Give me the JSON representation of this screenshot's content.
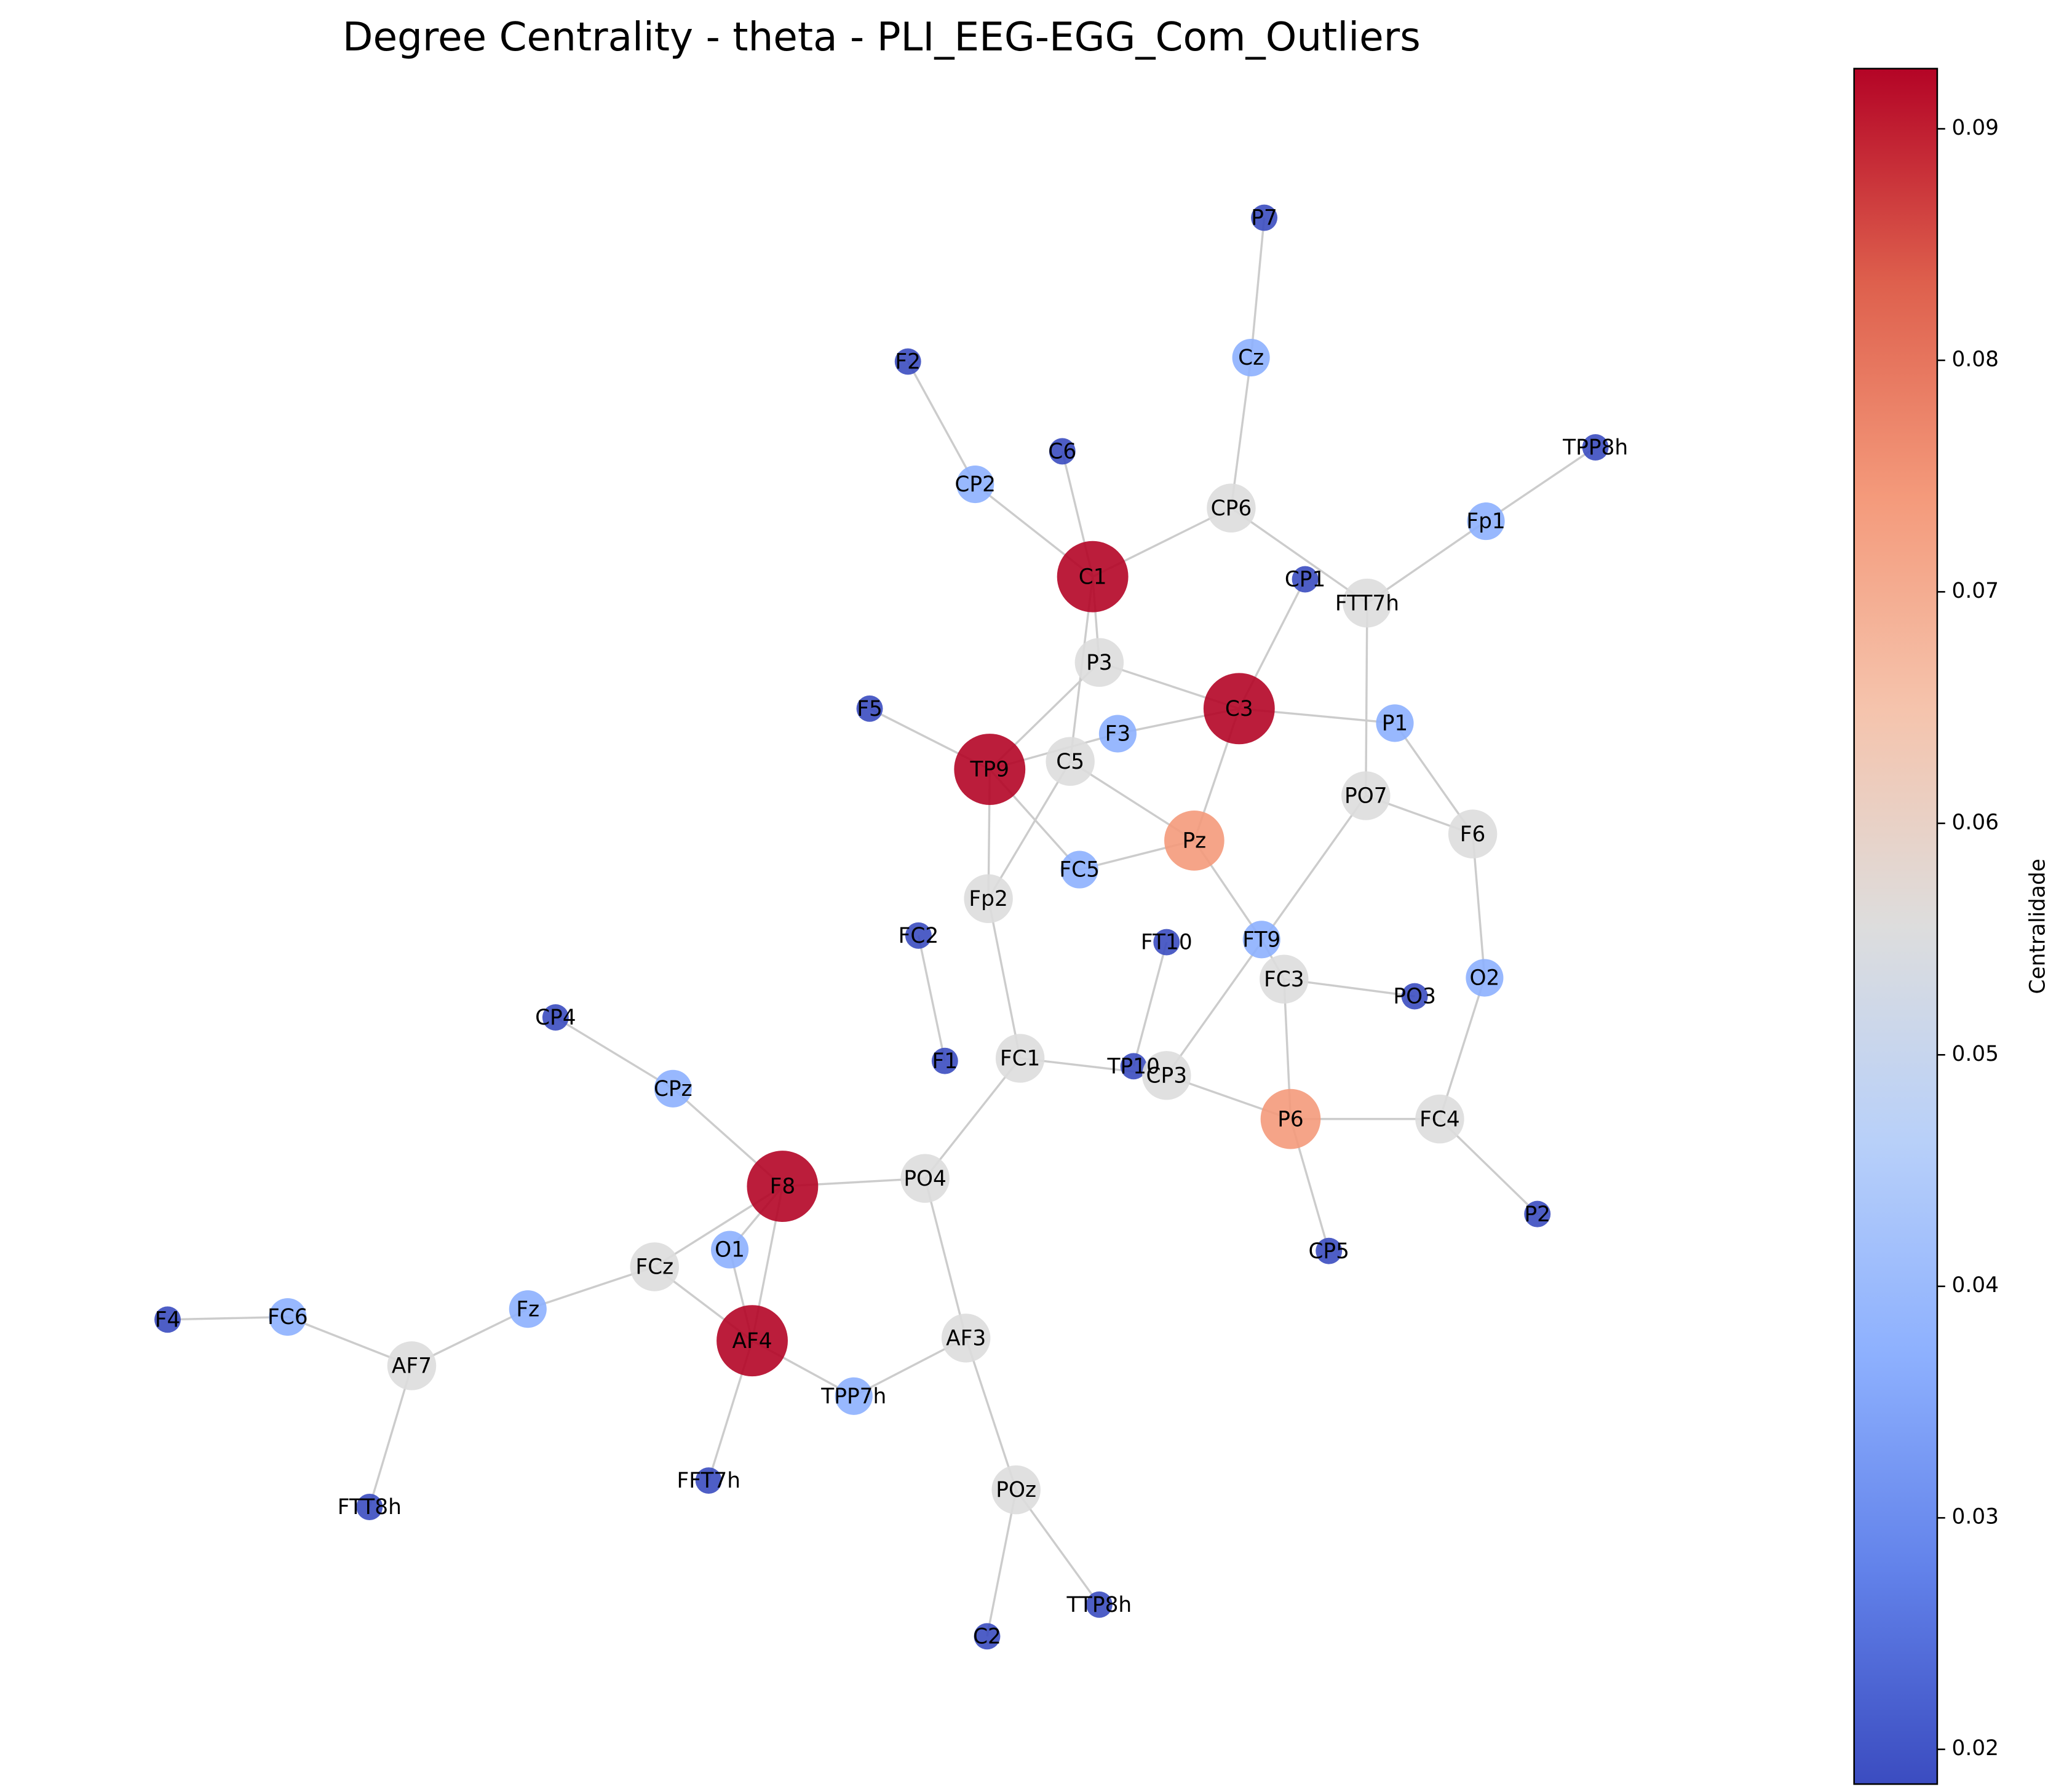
{
  "chart_data": {
    "type": "network",
    "title": "Degree Centrality - theta - PLI_EEG-EGG_Com_Outliers",
    "colorbar_label": "Centralidade",
    "colormap": "coolwarm",
    "clim": [
      0.0185,
      0.0926
    ],
    "cticks": [
      0.02,
      0.03,
      0.04,
      0.05,
      0.06,
      0.07,
      0.08,
      0.09
    ],
    "nodes": [
      {
        "name": "P7",
        "value": 0.0185
      },
      {
        "name": "Cz",
        "value": 0.037
      },
      {
        "name": "CP6",
        "value": 0.0556
      },
      {
        "name": "F2",
        "value": 0.0185
      },
      {
        "name": "CP2",
        "value": 0.037
      },
      {
        "name": "C6",
        "value": 0.0185
      },
      {
        "name": "C1",
        "value": 0.0926
      },
      {
        "name": "TPP8h",
        "value": 0.0185
      },
      {
        "name": "Fp1",
        "value": 0.037
      },
      {
        "name": "CP1",
        "value": 0.0185
      },
      {
        "name": "FTT7h",
        "value": 0.0556
      },
      {
        "name": "P3",
        "value": 0.0556
      },
      {
        "name": "C3",
        "value": 0.0926
      },
      {
        "name": "F5",
        "value": 0.0185
      },
      {
        "name": "TP9",
        "value": 0.0926
      },
      {
        "name": "C5",
        "value": 0.0556
      },
      {
        "name": "F3",
        "value": 0.037
      },
      {
        "name": "P1",
        "value": 0.037
      },
      {
        "name": "Pz",
        "value": 0.0741
      },
      {
        "name": "PO7",
        "value": 0.0556
      },
      {
        "name": "F6",
        "value": 0.0556
      },
      {
        "name": "FC5",
        "value": 0.037
      },
      {
        "name": "Fp2",
        "value": 0.0556
      },
      {
        "name": "FC2",
        "value": 0.0185
      },
      {
        "name": "FT10",
        "value": 0.0185
      },
      {
        "name": "FT9",
        "value": 0.037
      },
      {
        "name": "FC3",
        "value": 0.0556
      },
      {
        "name": "PO3",
        "value": 0.0185
      },
      {
        "name": "O2",
        "value": 0.037
      },
      {
        "name": "CP4",
        "value": 0.0185
      },
      {
        "name": "F1",
        "value": 0.0185
      },
      {
        "name": "FC1",
        "value": 0.0556
      },
      {
        "name": "TP10",
        "value": 0.0185
      },
      {
        "name": "CP3",
        "value": 0.0556
      },
      {
        "name": "P6",
        "value": 0.0741
      },
      {
        "name": "FC4",
        "value": 0.0556
      },
      {
        "name": "CPz",
        "value": 0.037
      },
      {
        "name": "F8",
        "value": 0.0926
      },
      {
        "name": "PO4",
        "value": 0.0556
      },
      {
        "name": "P2",
        "value": 0.0185
      },
      {
        "name": "CP5",
        "value": 0.0185
      },
      {
        "name": "O1",
        "value": 0.037
      },
      {
        "name": "FCz",
        "value": 0.0556
      },
      {
        "name": "F4",
        "value": 0.0185
      },
      {
        "name": "FC6",
        "value": 0.037
      },
      {
        "name": "Fz",
        "value": 0.037
      },
      {
        "name": "AF7",
        "value": 0.0556
      },
      {
        "name": "AF4",
        "value": 0.0926
      },
      {
        "name": "AF3",
        "value": 0.0556
      },
      {
        "name": "TPP7h",
        "value": 0.037
      },
      {
        "name": "FFT7h",
        "value": 0.0185
      },
      {
        "name": "FTT8h",
        "value": 0.0185
      },
      {
        "name": "POz",
        "value": 0.0556
      },
      {
        "name": "TTP8h",
        "value": 0.0185
      },
      {
        "name": "C2",
        "value": 0.0185
      }
    ],
    "edges": [
      [
        0,
        1
      ],
      [
        1,
        2
      ],
      [
        2,
        6
      ],
      [
        2,
        10
      ],
      [
        10,
        8
      ],
      [
        8,
        7
      ],
      [
        10,
        19
      ],
      [
        3,
        4
      ],
      [
        4,
        6
      ],
      [
        5,
        6
      ],
      [
        6,
        11
      ],
      [
        6,
        15
      ],
      [
        9,
        12
      ],
      [
        11,
        12
      ],
      [
        11,
        14
      ],
      [
        12,
        16
      ],
      [
        12,
        17
      ],
      [
        12,
        18
      ],
      [
        13,
        14
      ],
      [
        14,
        16
      ],
      [
        14,
        22
      ],
      [
        14,
        21
      ],
      [
        15,
        18
      ],
      [
        15,
        22
      ],
      [
        18,
        21
      ],
      [
        18,
        25
      ],
      [
        17,
        20
      ],
      [
        19,
        20
      ],
      [
        19,
        33
      ],
      [
        20,
        28
      ],
      [
        28,
        35
      ],
      [
        25,
        26
      ],
      [
        26,
        27
      ],
      [
        26,
        34
      ],
      [
        34,
        33
      ],
      [
        34,
        35
      ],
      [
        34,
        40
      ],
      [
        35,
        39
      ],
      [
        24,
        32
      ],
      [
        31,
        33
      ],
      [
        22,
        31
      ],
      [
        23,
        30
      ],
      [
        29,
        36
      ],
      [
        36,
        37
      ],
      [
        37,
        38
      ],
      [
        37,
        42
      ],
      [
        37,
        47
      ],
      [
        37,
        41
      ],
      [
        41,
        47
      ],
      [
        42,
        47
      ],
      [
        42,
        45
      ],
      [
        38,
        31
      ],
      [
        38,
        48
      ],
      [
        48,
        49
      ],
      [
        47,
        49
      ],
      [
        47,
        50
      ],
      [
        48,
        52
      ],
      [
        52,
        53
      ],
      [
        52,
        54
      ],
      [
        45,
        46
      ],
      [
        46,
        44
      ],
      [
        44,
        43
      ],
      [
        46,
        51
      ]
    ]
  }
}
